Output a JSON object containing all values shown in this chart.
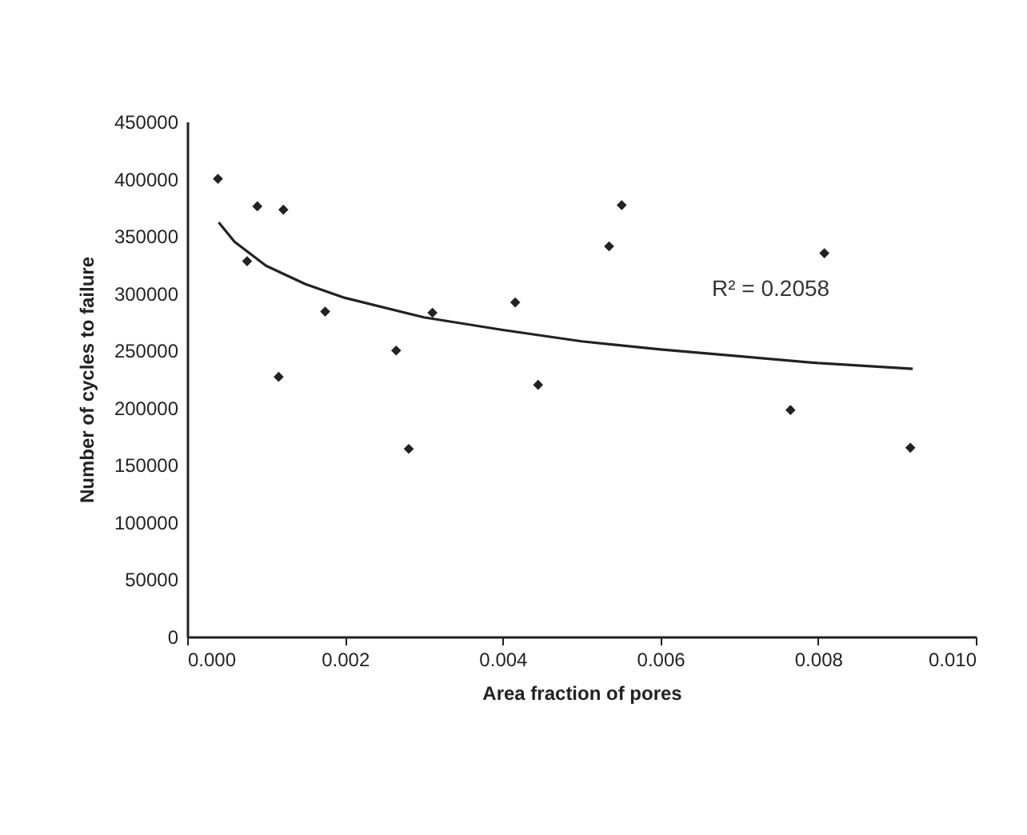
{
  "chart_data": {
    "type": "scatter",
    "xlabel": "Area fraction of pores",
    "ylabel": "Number of cycles to failure",
    "xlim": [
      0,
      0.01
    ],
    "ylim": [
      0,
      450000
    ],
    "xticks": [
      {
        "value": 0,
        "label": "0.000"
      },
      {
        "value": 0.002,
        "label": "0.002"
      },
      {
        "value": 0.004,
        "label": "0.004"
      },
      {
        "value": 0.006,
        "label": "0.006"
      },
      {
        "value": 0.008,
        "label": "0.008"
      },
      {
        "value": 0.01,
        "label": "0.010"
      }
    ],
    "yticks": [
      0,
      50000,
      100000,
      150000,
      200000,
      250000,
      300000,
      350000,
      400000,
      450000
    ],
    "grid": false,
    "series": [
      {
        "marker": "diamond",
        "color": "#222222",
        "x": [
          0.00039,
          0.00076,
          0.00089,
          0.00116,
          0.00122,
          0.00175,
          0.00265,
          0.00281,
          0.00311,
          0.00416,
          0.00445,
          0.00535,
          0.00551,
          0.00765,
          0.00808,
          0.00917
        ],
        "values": [
          400000,
          328000,
          376000,
          227000,
          373000,
          284000,
          250000,
          164000,
          283000,
          292000,
          220000,
          341000,
          377000,
          198000,
          335000,
          165000
        ]
      },
      {
        "type": "line",
        "color": "#222222",
        "line_style": "solid",
        "x": [
          0.0004,
          0.0006,
          0.001,
          0.0015,
          0.002,
          0.003,
          0.004,
          0.005,
          0.006,
          0.007,
          0.008,
          0.0092
        ],
        "values": [
          362000,
          345000,
          324000,
          308000,
          296000,
          279000,
          268000,
          258000,
          251000,
          245000,
          239000,
          234000
        ]
      }
    ],
    "annotations": [
      "R² = 0.2058"
    ]
  }
}
